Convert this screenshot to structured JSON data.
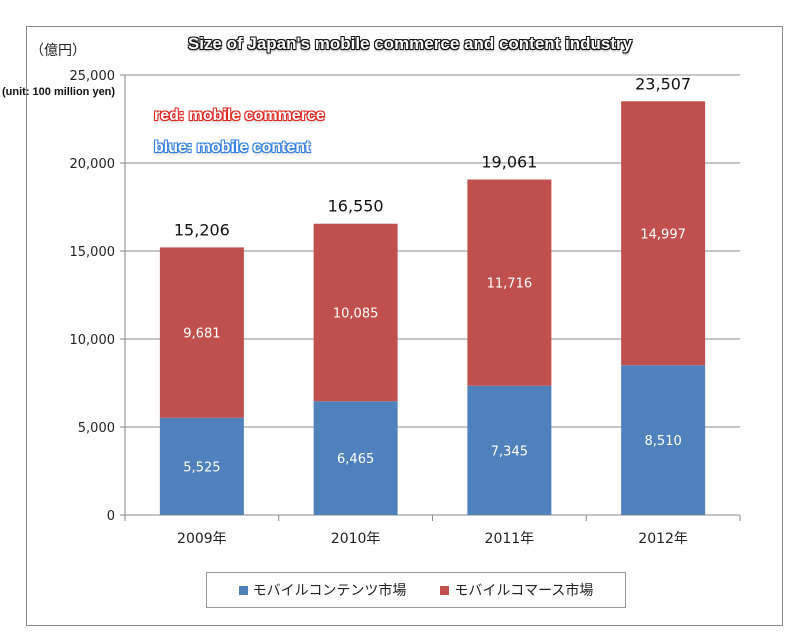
{
  "chart_data": {
    "type": "bar",
    "stacked": true,
    "title": "Size of Japan's mobile commerce and content industry",
    "ylabel": "（億円）",
    "yunit_note": "(unit: 100 million yen)",
    "annotations": [
      "red: mobile commerce",
      "blue: mobile content"
    ],
    "categories": [
      "2009年",
      "2010年",
      "2011年",
      "2012年"
    ],
    "ylim": [
      0,
      25000
    ],
    "yticks": [
      0,
      5000,
      10000,
      15000,
      20000,
      25000
    ],
    "ytick_labels": [
      "0",
      "5,000",
      "10,000",
      "15,000",
      "20,000",
      "25,000"
    ],
    "grid": true,
    "legend_position": "bottom",
    "series": [
      {
        "name": "モバイルコンテンツ市場",
        "color": "#4f81bd",
        "values": [
          5525,
          6465,
          7345,
          8510
        ],
        "labels": [
          "5,525",
          "6,465",
          "7,345",
          "8,510"
        ]
      },
      {
        "name": "モバイルコマース市場",
        "color": "#c0504d",
        "values": [
          9681,
          10085,
          11716,
          14997
        ],
        "labels": [
          "9,681",
          "10,085",
          "11,716",
          "14,997"
        ]
      }
    ],
    "totals": [
      15206,
      16550,
      19061,
      23507
    ],
    "total_labels": [
      "15,206",
      "16,550",
      "19,061",
      "23,507"
    ]
  }
}
